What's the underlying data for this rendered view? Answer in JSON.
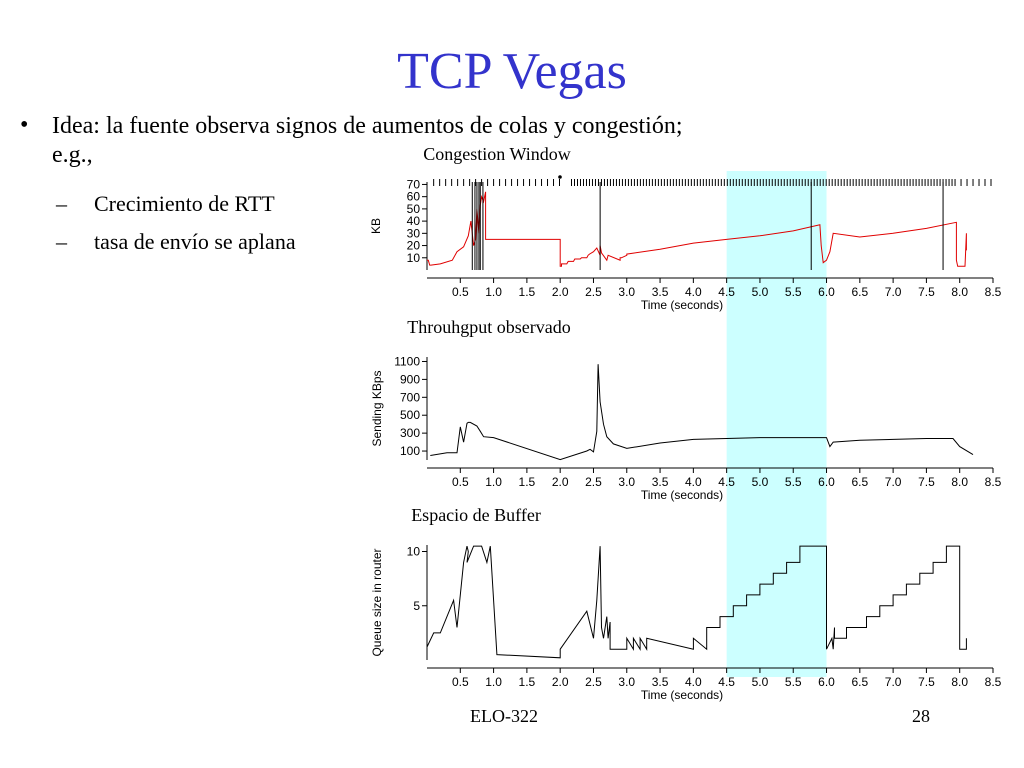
{
  "slide": {
    "title": "TCP Vegas",
    "title_color": "#3333cc",
    "bullet_symbol": "•",
    "bullet": "Idea: la fuente observa signos de aumentos de colas y congestión; e.g.,",
    "sub_symbol": "–",
    "sub_bullets": [
      "Crecimiento de RTT",
      "tasa de envío se aplana"
    ],
    "footer_course": "ELO-322",
    "footer_page": "28"
  },
  "highlight": {
    "x_range": [
      4.5,
      6.0
    ],
    "color": "#ccffff"
  },
  "chart_data": [
    {
      "type": "line",
      "title": "Congestion Window",
      "xlabel": "Time (seconds)",
      "ylabel": "KB",
      "xlim": [
        0,
        8.5
      ],
      "ylim": [
        0,
        72
      ],
      "x_ticks": [
        "0.5",
        "1.0",
        "1.5",
        "2.0",
        "2.5",
        "3.0",
        "3.5",
        "4.0",
        "4.5",
        "5.0",
        "5.5",
        "6.0",
        "6.5",
        "7.0",
        "7.5",
        "8.0",
        "8.5"
      ],
      "y_ticks": [
        10,
        20,
        30,
        40,
        50,
        60,
        70
      ],
      "series": [
        {
          "color": "#e00000",
          "x": [
            0.0,
            0.02,
            0.04,
            0.06,
            0.2,
            0.38,
            0.45,
            0.55,
            0.62,
            0.66,
            0.7,
            0.73,
            0.75,
            0.78,
            0.8,
            0.82,
            0.85,
            0.88,
            0.88,
            2.0,
            2.0,
            2.02,
            2.02,
            2.1,
            2.12,
            2.2,
            2.22,
            2.3,
            2.32,
            2.4,
            2.42,
            2.44,
            2.5,
            2.55,
            2.6,
            2.6,
            2.62,
            2.7,
            2.72,
            2.9,
            2.9,
            2.92,
            3.0,
            3.0,
            3.5,
            4.0,
            4.5,
            5.0,
            5.5,
            5.9,
            5.92,
            5.95,
            6.0,
            6.05,
            6.1,
            6.5,
            7.0,
            7.5,
            7.95,
            7.95,
            7.97,
            8.0,
            8.02,
            8.05,
            8.08,
            8.1,
            8.1
          ],
          "y": [
            8,
            8,
            4,
            4,
            5,
            8,
            15,
            19,
            28,
            40,
            20,
            25,
            50,
            30,
            53,
            60,
            56,
            64,
            25,
            25,
            3,
            3,
            5,
            5,
            7,
            7,
            9,
            9,
            10,
            10,
            12,
            13,
            15,
            18,
            12,
            20,
            14,
            8,
            12,
            8,
            10,
            10,
            12,
            13,
            17,
            22,
            25,
            28,
            32,
            37,
            20,
            6,
            8,
            15,
            30,
            27,
            30,
            34,
            39,
            8,
            3,
            3,
            3,
            3,
            3,
            30,
            16
          ]
        }
      ]
    },
    {
      "type": "line",
      "title": "Throuhgput observado",
      "xlabel": "Time (seconds)",
      "ylabel": "Sending KBps",
      "xlim": [
        0,
        8.5
      ],
      "ylim": [
        0,
        1150
      ],
      "x_ticks": [
        "0.5",
        "1.0",
        "1.5",
        "2.0",
        "2.5",
        "3.0",
        "3.5",
        "4.0",
        "4.5",
        "5.0",
        "5.5",
        "6.0",
        "6.5",
        "7.0",
        "7.5",
        "8.0",
        "8.5"
      ],
      "y_ticks": [
        100,
        300,
        500,
        700,
        900,
        1100
      ],
      "series": [
        {
          "color": "#000000",
          "x": [
            0.05,
            0.3,
            0.45,
            0.5,
            0.55,
            0.6,
            0.62,
            0.65,
            0.75,
            0.8,
            0.85,
            1.0,
            2.0,
            2.4,
            2.45,
            2.5,
            2.55,
            2.57,
            2.6,
            2.65,
            2.7,
            2.8,
            3.0,
            3.5,
            4.0,
            4.5,
            5.0,
            5.5,
            6.0,
            6.05,
            6.1,
            6.5,
            7.0,
            7.5,
            7.9,
            8.0,
            8.2
          ],
          "y": [
            50,
            80,
            80,
            370,
            200,
            410,
            420,
            420,
            380,
            320,
            260,
            250,
            5,
            100,
            120,
            90,
            320,
            1070,
            650,
            400,
            260,
            180,
            130,
            190,
            230,
            240,
            250,
            250,
            250,
            150,
            200,
            220,
            230,
            240,
            240,
            150,
            60
          ]
        }
      ]
    },
    {
      "type": "line",
      "title": "Espacio de Buffer",
      "xlabel": "Time (seconds)",
      "ylabel": "Queue size in router",
      "xlim": [
        0,
        8.5
      ],
      "ylim": [
        0,
        10.6
      ],
      "x_ticks": [
        "0.5",
        "1.0",
        "1.5",
        "2.0",
        "2.5",
        "3.0",
        "3.5",
        "4.0",
        "4.5",
        "5.0",
        "5.5",
        "6.0",
        "6.5",
        "7.0",
        "7.5",
        "8.0",
        "8.5"
      ],
      "y_ticks": [
        5,
        10
      ],
      "series": [
        {
          "color": "#000000",
          "x": [
            0.0,
            0.1,
            0.2,
            0.4,
            0.45,
            0.55,
            0.6,
            0.62,
            0.6,
            0.7,
            0.72,
            0.7,
            0.8,
            0.82,
            0.9,
            0.95,
            0.95,
            1.05,
            1.05,
            2.0,
            2.0,
            2.4,
            2.5,
            2.55,
            2.6,
            2.62,
            2.65,
            2.7,
            2.72,
            2.75,
            2.75,
            2.8,
            3.0,
            3.0,
            3.1,
            3.1,
            3.2,
            3.2,
            3.3,
            3.3,
            4.0,
            4.0,
            4.2,
            4.2,
            4.4,
            4.4,
            4.6,
            4.6,
            4.8,
            4.8,
            5.0,
            5.0,
            5.2,
            5.2,
            5.4,
            5.4,
            5.6,
            5.6,
            6.0,
            6.0,
            6.08,
            6.1,
            6.12,
            6.12,
            6.3,
            6.3,
            6.6,
            6.6,
            6.8,
            6.8,
            7.0,
            7.0,
            7.2,
            7.2,
            7.4,
            7.4,
            7.6,
            7.6,
            7.8,
            7.8,
            8.0,
            8.0,
            8.1,
            8.1
          ],
          "y": [
            1.2,
            2.5,
            2.5,
            5.5,
            3,
            9,
            10.5,
            10,
            9,
            10.5,
            10.5,
            10.5,
            10.5,
            10.5,
            9,
            10.5,
            10.5,
            0.5,
            0.5,
            0.2,
            1,
            4.5,
            2,
            5.5,
            10.5,
            3,
            2,
            4,
            2,
            3.5,
            1,
            1,
            1,
            2,
            1,
            2,
            1,
            2,
            1,
            2,
            1,
            2,
            1,
            3,
            3,
            4,
            4,
            5,
            5,
            6,
            6,
            7,
            7,
            8,
            8,
            9,
            9,
            10.5,
            10.5,
            1,
            2,
            1,
            3,
            2,
            2,
            3,
            3,
            4,
            4,
            5,
            5,
            6,
            6,
            7,
            7,
            8,
            8,
            9,
            9,
            10.5,
            10.5,
            1,
            1,
            2
          ]
        }
      ]
    }
  ]
}
